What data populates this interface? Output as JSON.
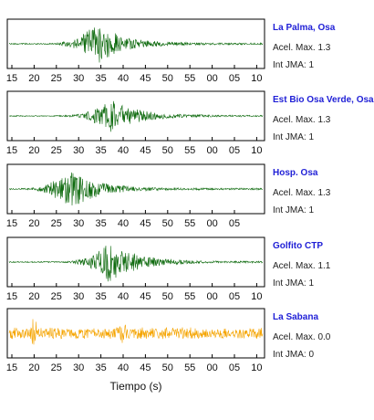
{
  "chart_data": {
    "type": "line",
    "xlabel": "Tiempo (s)",
    "panels": [
      {
        "station": "La Palma, Osa",
        "accel_label": "Acel. Max. 1.3",
        "intensity_label": "Int JMA: 1",
        "color": "#0f6b0f",
        "tick_labels": [
          "15",
          "20",
          "25",
          "30",
          "35",
          "40",
          "45",
          "50",
          "55",
          "00",
          "05",
          "10"
        ],
        "peak_time": 34,
        "relative_amplitude": 0.9
      },
      {
        "station": "Est Bio Osa Verde, Osa",
        "accel_label": "Acel. Max. 1.3",
        "intensity_label": "Int JMA: 1",
        "color": "#0f6b0f",
        "tick_labels": [
          "15",
          "20",
          "25",
          "30",
          "35",
          "40",
          "45",
          "50",
          "55",
          "00",
          "05",
          "10"
        ],
        "peak_time": 37,
        "relative_amplitude": 0.75
      },
      {
        "station": "Hosp. Osa",
        "accel_label": "Acel. Max. 1.3",
        "intensity_label": "Int JMA: 1",
        "color": "#0f6b0f",
        "tick_labels": [
          "15",
          "20",
          "25",
          "30",
          "35",
          "40",
          "45",
          "50",
          "55",
          "00",
          "05"
        ],
        "peak_time": 28,
        "relative_amplitude": 0.9
      },
      {
        "station": "Golfito CTP",
        "accel_label": "Acel. Max. 1.1",
        "intensity_label": "Int JMA: 1",
        "color": "#0f6b0f",
        "tick_labels": [
          "15",
          "20",
          "25",
          "30",
          "35",
          "40",
          "45",
          "50",
          "55",
          "00",
          "05",
          "10"
        ],
        "peak_time": 37,
        "relative_amplitude": 0.9
      },
      {
        "station": "La Sabana",
        "accel_label": "Acel. Max. 0.0",
        "intensity_label": "Int JMA: 0",
        "color": "#f5a400",
        "tick_labels": [
          "15",
          "20",
          "25",
          "30",
          "35",
          "40",
          "45",
          "50",
          "55",
          "00",
          "05",
          "10"
        ],
        "peak_time": 20,
        "relative_amplitude": 0.7
      }
    ]
  }
}
